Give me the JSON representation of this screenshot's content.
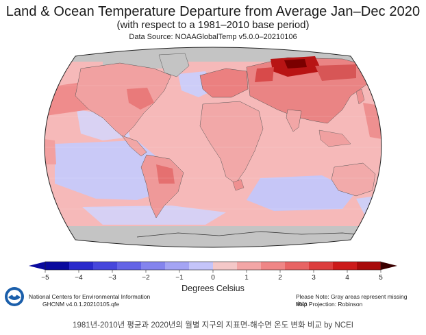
{
  "header": {
    "title": "Land & Ocean Temperature Departure from Average Jan–Dec 2020",
    "subtitle": "(with respect to a 1981–2010 base period)",
    "source": "Data Source: NOAAGlobalTemp v5.0.0–20210106"
  },
  "map_data": {
    "type": "choropleth-world",
    "projection": "Robinson",
    "variable": "Temperature departure",
    "unit": "Degrees Celsius",
    "missing_color": "#c4c4c4",
    "regions": [
      {
        "name": "Siberia / Arctic Russia",
        "anomaly": 4.5
      },
      {
        "name": "Northern Europe / Scandinavia",
        "anomaly": 2.5
      },
      {
        "name": "Central Asia",
        "anomaly": 1.5
      },
      {
        "name": "North Pacific",
        "anomaly": 1.5
      },
      {
        "name": "Eastern North America",
        "anomaly": 1.0
      },
      {
        "name": "Southern Ocean",
        "anomaly": -0.5
      },
      {
        "name": "Eastern Tropical Pacific",
        "anomaly": -0.5
      },
      {
        "name": "North Atlantic (south of Greenland)",
        "anomaly": -0.5
      }
    ]
  },
  "legend": {
    "title": "Degrees Celsius",
    "ticks": [
      "−5",
      "−4",
      "−3",
      "−2",
      "−1",
      "0",
      "1",
      "2",
      "3",
      "4",
      "5"
    ],
    "colors": [
      "#0a0a9e",
      "#2a2acc",
      "#4646dc",
      "#6464e6",
      "#8484ee",
      "#a4a4f4",
      "#c4c4fa",
      "#f4c8c8",
      "#f3a6a6",
      "#ef8686",
      "#e86464",
      "#dc3e3e",
      "#cc1a1a",
      "#a80a0a"
    ]
  },
  "footer": {
    "org_name": "National Centers for Environmental Information",
    "org_version": "GHCNM v4.0.1.20210105.qfe",
    "note": "Please Note: Gray areas represent missing data",
    "projection": "Map Projection: Robinson",
    "caption": "1981년-2010년 평균과 2020년의 월별 지구의 지표면-해수면 온도 변화 비교 by NCEI"
  }
}
